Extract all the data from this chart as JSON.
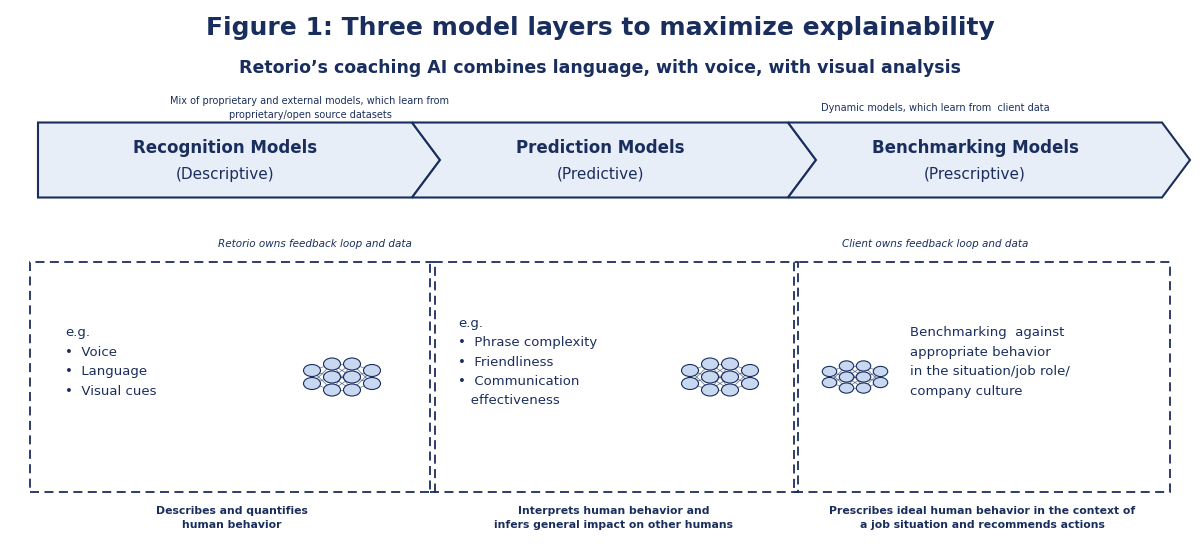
{
  "title": "Figure 1: Three model layers to maximize explainability",
  "subtitle": "Retorio’s coaching AI combines language, with voice, with visual analysis",
  "dark_blue": "#1a2e5e",
  "light_blue": "#c8d8f0",
  "arrow_fill": "#e8eef8",
  "bg_color": "#ffffff",
  "note_left": "Mix of proprietary and external models, which learn from\nproprietary/open source datasets",
  "note_right": "Dynamic models, which learn from  client data",
  "arrow_labels": [
    "Recognition Models\n(Descriptive)",
    "Prediction Models\n(Predictive)",
    "Benchmarking Models\n(Prescriptive)"
  ],
  "feedback_left": "Retorio owns feedback loop and data",
  "feedback_right": "Client owns feedback loop and data",
  "box1_text": "e.g.\n•  Voice\n•  Language\n•  Visual cues",
  "box2_text": "e.g.\n•  Phrase complexity\n•  Friendliness\n•  Communication\n   effectiveness",
  "box3_text": "Benchmarking  against\nappropriate behavior\nin the situation/job role/\ncompany culture",
  "bottom1": "Describes and quantifies\nhuman behavior",
  "bottom2": "Interprets human behavior and\ninfers general impact on other humans",
  "bottom3": "Prescribes ideal human behavior in the context of\na job situation and recommends actions"
}
